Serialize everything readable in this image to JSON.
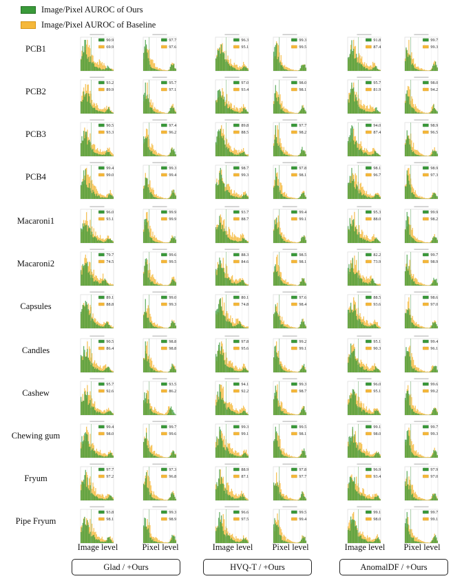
{
  "legend": {
    "ours": "Image/Pixel  AUROC of Ours",
    "baseline": "Image/Pixel  AUROC of Baseline",
    "colors": {
      "ours": "#3a9a3a",
      "baseline": "#f5b83a"
    }
  },
  "categories": [
    "PCB1",
    "PCB2",
    "PCB3",
    "PCB4",
    "Macaroni1",
    "Macaroni2",
    "Capsules",
    "Candles",
    "Cashew",
    "Chewing gum",
    "Fryum",
    "Pipe Fryum"
  ],
  "column_labels": [
    "Image level",
    "Pixel level",
    "Image level",
    "Pixel level",
    "Image level",
    "Pixel level"
  ],
  "groups": [
    "Glad / +Ours",
    "HVQ-T / +Ours",
    "AnomalDF / +Ours"
  ],
  "chart_data": {
    "type": "histogram-grid",
    "series_names": [
      "Ours",
      "Baseline"
    ],
    "columns": [
      {
        "method": "Glad",
        "level": "Image"
      },
      {
        "method": "Glad",
        "level": "Pixel"
      },
      {
        "method": "HVQ-T",
        "level": "Image"
      },
      {
        "method": "HVQ-T",
        "level": "Pixel"
      },
      {
        "method": "AnomalDF",
        "level": "Image"
      },
      {
        "method": "AnomalDF",
        "level": "Pixel"
      }
    ],
    "auroc": [
      [
        [
          90.9,
          69.9
        ],
        [
          97.7,
          97.6
        ],
        [
          96.3,
          95.1
        ],
        [
          99.3,
          99.5
        ],
        [
          91.8,
          87.4
        ],
        [
          99.7,
          99.3
        ]
      ],
      [
        [
          93.2,
          89.9
        ],
        [
          95.7,
          97.1
        ],
        [
          97.0,
          93.4
        ],
        [
          98.0,
          98.1
        ],
        [
          95.7,
          81.9
        ],
        [
          98.0,
          94.2
        ]
      ],
      [
        [
          90.5,
          93.3
        ],
        [
          97.4,
          96.2
        ],
        [
          89.8,
          88.5
        ],
        [
          97.7,
          98.2
        ],
        [
          94.0,
          87.4
        ],
        [
          98.9,
          96.5
        ]
      ],
      [
        [
          99.4,
          99.0
        ],
        [
          99.3,
          99.4
        ],
        [
          98.7,
          99.3
        ],
        [
          97.8,
          98.1
        ],
        [
          98.1,
          96.7
        ],
        [
          98.9,
          97.3
        ]
      ],
      [
        [
          96.0,
          93.1
        ],
        [
          99.9,
          99.9
        ],
        [
          93.7,
          88.7
        ],
        [
          99.4,
          99.1
        ],
        [
          95.3,
          88.0
        ],
        [
          99.9,
          98.2
        ]
      ],
      [
        [
          79.7,
          74.5
        ],
        [
          99.6,
          99.5
        ],
        [
          88.3,
          84.6
        ],
        [
          98.5,
          98.1
        ],
        [
          82.2,
          73.9
        ],
        [
          99.7,
          98.9
        ]
      ],
      [
        [
          89.1,
          88.8
        ],
        [
          99.0,
          99.3
        ],
        [
          80.1,
          74.8
        ],
        [
          97.6,
          98.4
        ],
        [
          88.5,
          93.6
        ],
        [
          98.6,
          97.0
        ]
      ],
      [
        [
          90.5,
          86.4
        ],
        [
          98.8,
          98.8
        ],
        [
          97.8,
          95.6
        ],
        [
          99.2,
          99.1
        ],
        [
          95.1,
          90.3
        ],
        [
          99.4,
          96.1
        ]
      ],
      [
        [
          95.7,
          92.6
        ],
        [
          93.5,
          86.2
        ],
        [
          94.1,
          92.2
        ],
        [
          99.3,
          98.7
        ],
        [
          96.0,
          95.1
        ],
        [
          99.6,
          99.2
        ]
      ],
      [
        [
          99.4,
          98.0
        ],
        [
          99.7,
          99.6
        ],
        [
          99.3,
          99.1
        ],
        [
          99.5,
          98.1
        ],
        [
          99.1,
          98.0
        ],
        [
          99.7,
          99.3
        ]
      ],
      [
        [
          97.7,
          97.2
        ],
        [
          97.3,
          96.8
        ],
        [
          88.9,
          87.1
        ],
        [
          97.8,
          97.7
        ],
        [
          96.9,
          93.4
        ],
        [
          97.9,
          97.0
        ]
      ],
      [
        [
          93.8,
          98.1
        ],
        [
          99.3,
          98.9
        ],
        [
          96.6,
          97.5
        ],
        [
          99.5,
          99.4
        ],
        [
          99.1,
          98.0
        ],
        [
          99.7,
          99.1
        ]
      ]
    ]
  }
}
